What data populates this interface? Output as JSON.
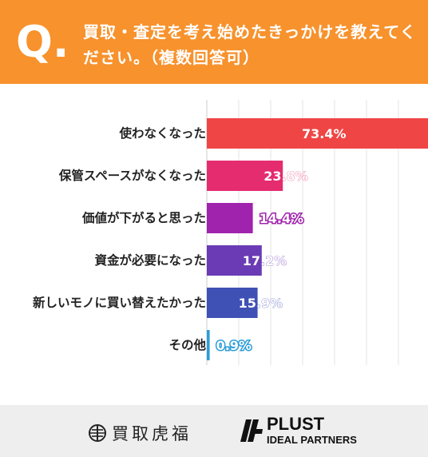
{
  "header": {
    "q_mark": "Q.",
    "question": "買取・査定を考え始めたきっかけを教えてください。（複数回答可）"
  },
  "chart_data": {
    "type": "bar",
    "orientation": "horizontal",
    "categories": [
      "使わなくなった",
      "保管スペースがなくなった",
      "価値が下がると思った",
      "資金が必要になった",
      "新しいモノに買い替えたかった",
      "その他"
    ],
    "values": [
      73.4,
      23.8,
      14.4,
      17.2,
      15.9,
      0.9
    ],
    "data_labels": [
      "73.4%",
      "23.8%",
      "14.4%",
      "17.2%",
      "15.9%",
      "0.9%"
    ],
    "colors": [
      "#F04545",
      "#E42C6E",
      "#A023AE",
      "#6A3BB5",
      "#3F51B5",
      "#2C9ED8"
    ],
    "xlim": [
      0,
      80
    ],
    "grid": true,
    "legend": "none"
  },
  "footer": {
    "brand1": "買取虎福",
    "brand2_name": "PLUST",
    "brand2_sub": "IDEAL PARTNERS"
  }
}
